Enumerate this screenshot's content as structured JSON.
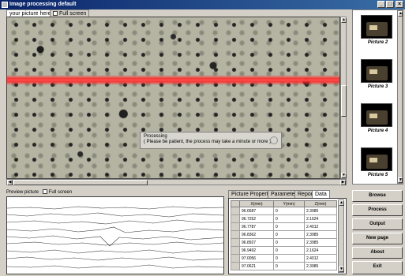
{
  "window": {
    "title": "Image processing default"
  },
  "image_tabs": [
    {
      "label": "your picture here"
    },
    {
      "label": "Full screen"
    }
  ],
  "processing_dialog": {
    "line1": "Processing",
    "line2": "( Please be patient, the process may take a minute or more )"
  },
  "thumbnails": [
    {
      "label": "Picture 2"
    },
    {
      "label": "Picture 3"
    },
    {
      "label": "Picture 4"
    },
    {
      "label": "Picture 5"
    }
  ],
  "preview": {
    "label": "Preview picture",
    "fullscreen_label": "Full screen"
  },
  "data_tabs": [
    {
      "label": "Picture Properties"
    },
    {
      "label": "Parameters"
    },
    {
      "label": "Report"
    },
    {
      "label": "Data"
    }
  ],
  "table": {
    "columns": [
      "X(mm)",
      "Y(mm)",
      "Z(mm)"
    ],
    "rows": [
      [
        "96.6687",
        "0",
        "2.3985"
      ],
      [
        "96.7252",
        "0",
        "2.1624"
      ],
      [
        "96.7787",
        "0",
        "2.4012"
      ],
      [
        "96.8362",
        "0",
        "2.3985"
      ],
      [
        "96.8927",
        "0",
        "2.3985"
      ],
      [
        "96.9492",
        "0",
        "2.1624"
      ],
      [
        "97.0056",
        "0",
        "2.4012"
      ],
      [
        "97.0621",
        "0",
        "2.3985"
      ]
    ]
  },
  "buttons": [
    {
      "label": "Browse"
    },
    {
      "label": "Process"
    },
    {
      "label": "Output"
    },
    {
      "label": "New page"
    },
    {
      "label": "About"
    },
    {
      "label": "Exit"
    }
  ]
}
